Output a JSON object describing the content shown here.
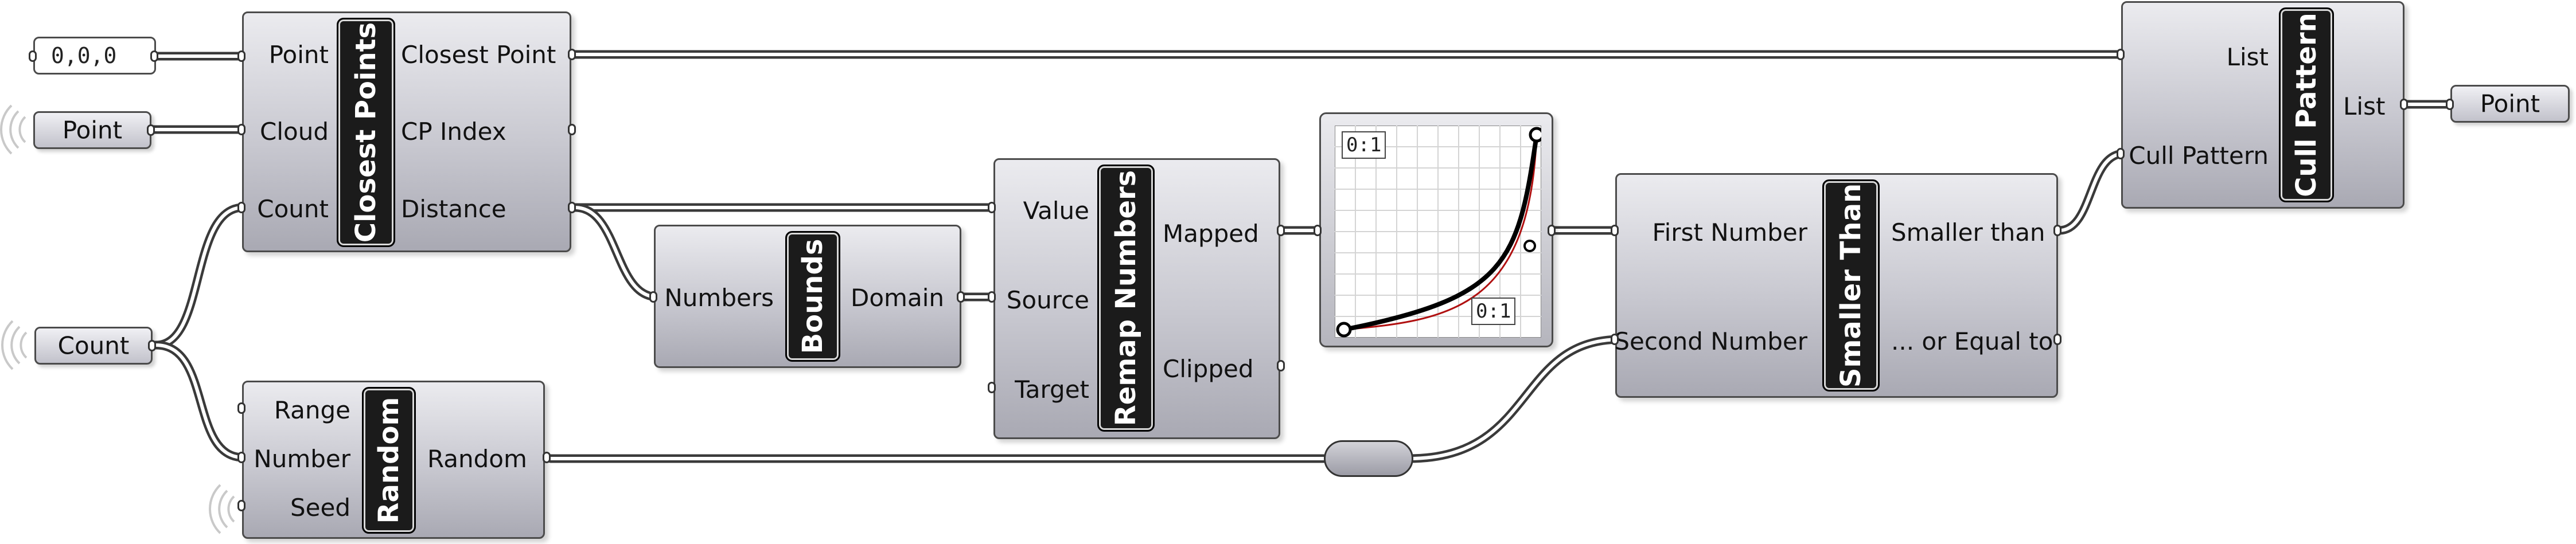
{
  "inputs": {
    "origin_panel": "0,0,0",
    "point_param": "Point",
    "count_param": "Count",
    "output_point": "Point"
  },
  "closest_points": {
    "title": "Closest Points",
    "inputs": [
      "Point",
      "Cloud",
      "Count"
    ],
    "outputs": [
      "Closest Point",
      "CP Index",
      "Distance"
    ]
  },
  "bounds": {
    "title": "Bounds",
    "inputs": [
      "Numbers"
    ],
    "outputs": [
      "Domain"
    ]
  },
  "remap": {
    "title": "Remap Numbers",
    "inputs": [
      "Value",
      "Source",
      "Target"
    ],
    "outputs": [
      "Mapped",
      "Clipped"
    ]
  },
  "graph_mapper": {
    "domain_top": "0:1",
    "domain_bottom": "0:1"
  },
  "smaller_than": {
    "title": "Smaller Than",
    "inputs": [
      "First Number",
      "Second Number"
    ],
    "outputs": [
      "Smaller than",
      "... or Equal to"
    ]
  },
  "cull_pattern": {
    "title": "Cull Pattern",
    "inputs": [
      "List",
      "Cull Pattern"
    ],
    "outputs": [
      "List"
    ]
  },
  "random": {
    "title": "Random",
    "inputs": [
      "Range",
      "Number",
      "Seed"
    ],
    "outputs": [
      "Random"
    ]
  }
}
